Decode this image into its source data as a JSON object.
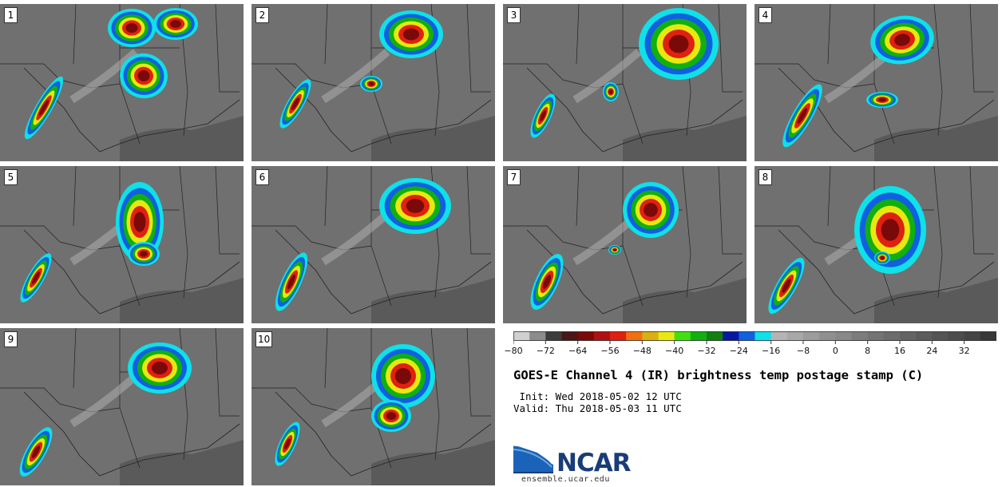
{
  "title": "GOES-E Channel 4 (IR) brightness temp postage stamp (C)",
  "init": " Init: Wed 2018-05-02 12 UTC",
  "valid": "Valid: Thu 2018-05-03 11 UTC",
  "website": "ensemble.ucar.edu",
  "logo_text": "NCAR",
  "panels": [
    {
      "label": "1"
    },
    {
      "label": "2"
    },
    {
      "label": "3"
    },
    {
      "label": "4"
    },
    {
      "label": "5"
    },
    {
      "label": "6"
    },
    {
      "label": "7"
    },
    {
      "label": "8"
    },
    {
      "label": "9"
    },
    {
      "label": "10"
    }
  ],
  "colorbar": {
    "unit": "C",
    "min": -80,
    "max": 40,
    "step": 4,
    "tick_labels": [
      "−80",
      "−72",
      "−64",
      "−56",
      "−48",
      "−40",
      "−32",
      "−24",
      "−16",
      "−8",
      "0",
      "8",
      "16",
      "24",
      "32"
    ],
    "tick_values": [
      -80,
      -72,
      -64,
      -56,
      -48,
      -40,
      -32,
      -24,
      -16,
      -8,
      0,
      8,
      16,
      24,
      32
    ],
    "colors": [
      "#d0d0d0",
      "#8c8c8c",
      "#3c3c3c",
      "#4a1616",
      "#7a0a0a",
      "#b01010",
      "#e02010",
      "#f07010",
      "#d8b010",
      "#e8e810",
      "#40e010",
      "#10b010",
      "#108010",
      "#0818a0",
      "#1060e0",
      "#10e0e8",
      "#b4b4b4",
      "#a8a8a8",
      "#9c9c9c",
      "#909090",
      "#888888",
      "#7c7c7c",
      "#747474",
      "#6c6c6c",
      "#646464",
      "#5c5c5c",
      "#545454",
      "#4c4c4c",
      "#444444",
      "#383838"
    ]
  }
}
